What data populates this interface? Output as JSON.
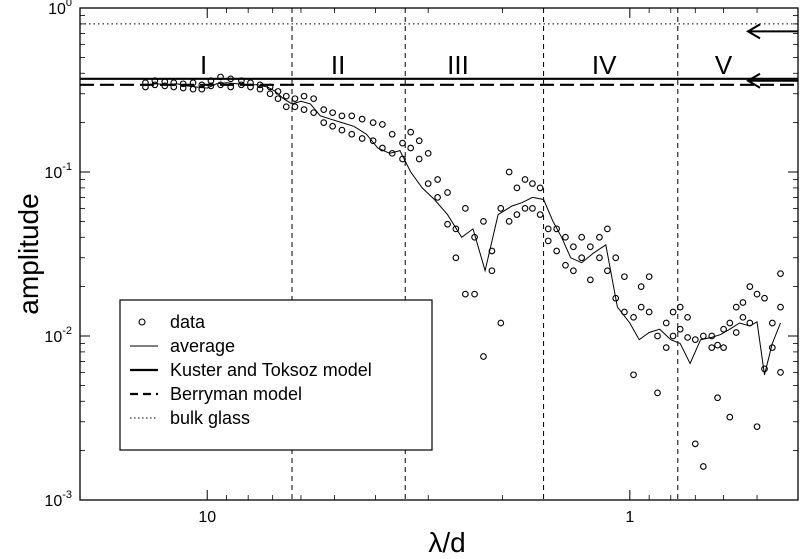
{
  "chart_data": {
    "type": "scatter",
    "xlabel": "λ/d",
    "ylabel": "amplitude",
    "x_scale": "log-reversed",
    "y_scale": "log",
    "xlim": [
      20,
      0.4
    ],
    "ylim": [
      0.001,
      1
    ],
    "x_ticks": [
      {
        "value": 10,
        "label": "10"
      },
      {
        "value": 1,
        "label": "1"
      }
    ],
    "y_ticks": [
      {
        "value": 0.001,
        "label": "10",
        "exp": "-3"
      },
      {
        "value": 0.01,
        "label": "10",
        "exp": "-2"
      },
      {
        "value": 0.1,
        "label": "10",
        "exp": "-1"
      },
      {
        "value": 1,
        "label": "10",
        "exp": "0"
      }
    ],
    "regions": [
      {
        "label": "I",
        "x": 10.2
      },
      {
        "label": "II",
        "x": 4.9
      },
      {
        "label": "III",
        "x": 2.55
      },
      {
        "label": "IV",
        "x": 1.15
      },
      {
        "label": "V",
        "x": 0.6
      }
    ],
    "region_boundaries": [
      6.3,
      3.4,
      1.6,
      0.77
    ],
    "reference_lines": [
      {
        "name": "Kuster and Toksoz model",
        "y": 0.37,
        "style": "solid-thick"
      },
      {
        "name": "Berryman model",
        "y": 0.34,
        "style": "dashed-thick"
      },
      {
        "name": "bulk glass",
        "y": 0.8,
        "style": "dotted"
      }
    ],
    "arrows": [
      {
        "y": 0.72
      },
      {
        "y": 0.36
      }
    ],
    "average": {
      "x": [
        14,
        13.2,
        12.5,
        11.8,
        11.2,
        10.6,
        10,
        9.5,
        9,
        8.5,
        8,
        7.6,
        7.2,
        6.9,
        6.6,
        6.3,
        6,
        5.7,
        5.4,
        5.1,
        4.8,
        4.5,
        4.2,
        3.95,
        3.7,
        3.5,
        3.3,
        3.1,
        2.9,
        2.7,
        2.5,
        2.35,
        2.2,
        2.05,
        1.9,
        1.8,
        1.7,
        1.6,
        1.52,
        1.45,
        1.38,
        1.3,
        1.22,
        1.14,
        1.07,
        1.0,
        0.95,
        0.9,
        0.85,
        0.8,
        0.76,
        0.72,
        0.68,
        0.64,
        0.61,
        0.58,
        0.55,
        0.52,
        0.5,
        0.48,
        0.46,
        0.44
      ],
      "y": [
        0.34,
        0.345,
        0.34,
        0.345,
        0.335,
        0.33,
        0.325,
        0.345,
        0.35,
        0.345,
        0.34,
        0.34,
        0.33,
        0.31,
        0.28,
        0.26,
        0.27,
        0.26,
        0.22,
        0.21,
        0.2,
        0.19,
        0.17,
        0.14,
        0.13,
        0.135,
        0.1,
        0.08,
        0.068,
        0.055,
        0.04,
        0.045,
        0.025,
        0.055,
        0.062,
        0.065,
        0.07,
        0.068,
        0.05,
        0.04,
        0.03,
        0.028,
        0.032,
        0.036,
        0.015,
        0.012,
        0.0095,
        0.0105,
        0.011,
        0.0095,
        0.009,
        0.0068,
        0.0095,
        0.0098,
        0.0102,
        0.011,
        0.012,
        0.0115,
        0.0122,
        0.0058,
        0.009,
        0.012
      ]
    },
    "points": [
      [
        14,
        0.35
      ],
      [
        14,
        0.33
      ],
      [
        13.3,
        0.36
      ],
      [
        13.3,
        0.34
      ],
      [
        12.6,
        0.355
      ],
      [
        12.6,
        0.335
      ],
      [
        12,
        0.35
      ],
      [
        12,
        0.33
      ],
      [
        11.4,
        0.345
      ],
      [
        11.4,
        0.325
      ],
      [
        10.8,
        0.35
      ],
      [
        10.8,
        0.32
      ],
      [
        10.3,
        0.34
      ],
      [
        10.3,
        0.32
      ],
      [
        9.8,
        0.36
      ],
      [
        9.8,
        0.335
      ],
      [
        9.3,
        0.38
      ],
      [
        9.3,
        0.34
      ],
      [
        8.8,
        0.37
      ],
      [
        8.8,
        0.33
      ],
      [
        8.3,
        0.36
      ],
      [
        8.3,
        0.34
      ],
      [
        7.9,
        0.35
      ],
      [
        7.9,
        0.33
      ],
      [
        7.5,
        0.34
      ],
      [
        7.5,
        0.32
      ],
      [
        7.1,
        0.33
      ],
      [
        7.1,
        0.3
      ],
      [
        6.8,
        0.31
      ],
      [
        6.8,
        0.28
      ],
      [
        6.5,
        0.29
      ],
      [
        6.5,
        0.25
      ],
      [
        6.2,
        0.28
      ],
      [
        6.2,
        0.25
      ],
      [
        5.9,
        0.29
      ],
      [
        5.9,
        0.24
      ],
      [
        5.6,
        0.28
      ],
      [
        5.6,
        0.23
      ],
      [
        5.3,
        0.24
      ],
      [
        5.3,
        0.2
      ],
      [
        5.05,
        0.23
      ],
      [
        5.05,
        0.19
      ],
      [
        4.8,
        0.22
      ],
      [
        4.8,
        0.18
      ],
      [
        4.55,
        0.22
      ],
      [
        4.55,
        0.17
      ],
      [
        4.3,
        0.21
      ],
      [
        4.3,
        0.16
      ],
      [
        4.05,
        0.2
      ],
      [
        4.05,
        0.155
      ],
      [
        3.85,
        0.195
      ],
      [
        3.85,
        0.14
      ],
      [
        3.65,
        0.17
      ],
      [
        3.65,
        0.13
      ],
      [
        3.45,
        0.15
      ],
      [
        3.45,
        0.12
      ],
      [
        3.3,
        0.175
      ],
      [
        3.3,
        0.14
      ],
      [
        3.15,
        0.155
      ],
      [
        3.15,
        0.12
      ],
      [
        3.0,
        0.13
      ],
      [
        3.0,
        0.085
      ],
      [
        2.85,
        0.09
      ],
      [
        2.85,
        0.07
      ],
      [
        2.7,
        0.075
      ],
      [
        2.7,
        0.048
      ],
      [
        2.58,
        0.045
      ],
      [
        2.58,
        0.03
      ],
      [
        2.45,
        0.06
      ],
      [
        2.45,
        0.018
      ],
      [
        2.33,
        0.04
      ],
      [
        2.33,
        0.018
      ],
      [
        2.22,
        0.05
      ],
      [
        2.22,
        0.0075
      ],
      [
        2.12,
        0.033
      ],
      [
        2.12,
        0.025
      ],
      [
        2.02,
        0.06
      ],
      [
        2.02,
        0.012
      ],
      [
        1.93,
        0.1
      ],
      [
        1.93,
        0.05
      ],
      [
        1.85,
        0.08
      ],
      [
        1.85,
        0.055
      ],
      [
        1.77,
        0.09
      ],
      [
        1.77,
        0.06
      ],
      [
        1.7,
        0.085
      ],
      [
        1.7,
        0.06
      ],
      [
        1.63,
        0.08
      ],
      [
        1.63,
        0.055
      ],
      [
        1.56,
        0.045
      ],
      [
        1.56,
        0.038
      ],
      [
        1.49,
        0.045
      ],
      [
        1.49,
        0.033
      ],
      [
        1.42,
        0.04
      ],
      [
        1.42,
        0.027
      ],
      [
        1.36,
        0.035
      ],
      [
        1.36,
        0.025
      ],
      [
        1.3,
        0.04
      ],
      [
        1.3,
        0.03
      ],
      [
        1.24,
        0.035
      ],
      [
        1.24,
        0.022
      ],
      [
        1.18,
        0.04
      ],
      [
        1.18,
        0.03
      ],
      [
        1.13,
        0.045
      ],
      [
        1.13,
        0.025
      ],
      [
        1.08,
        0.03
      ],
      [
        1.08,
        0.017
      ],
      [
        1.03,
        0.023
      ],
      [
        1.03,
        0.014
      ],
      [
        0.98,
        0.0058
      ],
      [
        0.98,
        0.013
      ],
      [
        0.94,
        0.02
      ],
      [
        0.94,
        0.015
      ],
      [
        0.9,
        0.023
      ],
      [
        0.9,
        0.014
      ],
      [
        0.86,
        0.0045
      ],
      [
        0.86,
        0.01
      ],
      [
        0.82,
        0.012
      ],
      [
        0.82,
        0.0085
      ],
      [
        0.79,
        0.014
      ],
      [
        0.79,
        0.01
      ],
      [
        0.76,
        0.015
      ],
      [
        0.76,
        0.011
      ],
      [
        0.73,
        0.013
      ],
      [
        0.73,
        0.0098
      ],
      [
        0.7,
        0.0022
      ],
      [
        0.7,
        0.0095
      ],
      [
        0.67,
        0.0016
      ],
      [
        0.67,
        0.01
      ],
      [
        0.64,
        0.01
      ],
      [
        0.64,
        0.0085
      ],
      [
        0.62,
        0.0088
      ],
      [
        0.62,
        0.0042
      ],
      [
        0.6,
        0.011
      ],
      [
        0.6,
        0.0085
      ],
      [
        0.58,
        0.0032
      ],
      [
        0.58,
        0.012
      ],
      [
        0.56,
        0.015
      ],
      [
        0.56,
        0.0105
      ],
      [
        0.54,
        0.013
      ],
      [
        0.54,
        0.016
      ],
      [
        0.52,
        0.02
      ],
      [
        0.52,
        0.012
      ],
      [
        0.5,
        0.018
      ],
      [
        0.5,
        0.0028
      ],
      [
        0.48,
        0.0063
      ],
      [
        0.48,
        0.017
      ],
      [
        0.46,
        0.0085
      ],
      [
        0.46,
        0.012
      ],
      [
        0.44,
        0.024
      ],
      [
        0.44,
        0.015
      ],
      [
        0.44,
        0.006
      ]
    ]
  },
  "legend": [
    {
      "label": "data",
      "symbol": "circle"
    },
    {
      "label": "average",
      "symbol": "thin-line"
    },
    {
      "label": "Kuster and Toksoz model",
      "symbol": "thick-line"
    },
    {
      "label": "Berryman model",
      "symbol": "thick-dashed"
    },
    {
      "label": "bulk glass",
      "symbol": "dotted-line"
    }
  ]
}
